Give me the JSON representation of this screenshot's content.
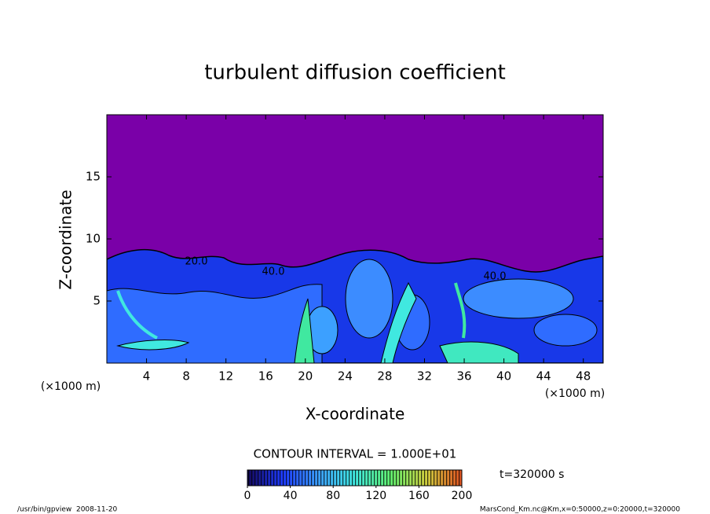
{
  "chart_data": {
    "type": "contour",
    "title": "turbulent diffusion coefficient",
    "x_label": "X-coordinate",
    "y_label": "Z-coordinate",
    "x_unit": "(×1000 m)",
    "y_unit": "(×1000 m)",
    "xlim": [
      0,
      50
    ],
    "ylim": [
      0,
      20
    ],
    "xticks": [
      4,
      8,
      12,
      16,
      20,
      24,
      28,
      32,
      36,
      40,
      44,
      48
    ],
    "yticks": [
      5,
      10,
      15
    ],
    "contour_labels": [
      "20.0",
      "40.0",
      "40.0"
    ],
    "contour_interval": "CONTOUR INTERVAL = 1.000E+01",
    "colorbar": {
      "lim": [
        0,
        200
      ],
      "ticks": [
        0,
        40,
        80,
        120,
        160,
        200
      ],
      "colors": [
        "#14085a",
        "#1e3cff",
        "#3ca0ff",
        "#40e8e0",
        "#60f070",
        "#d0d040",
        "#e05020"
      ]
    },
    "time_label": "t=320000 s"
  },
  "footer": {
    "left": "/usr/bin/gpview  2008-11-20",
    "right": "MarsCond_Km.nc@Km,x=0:50000,z=0:20000,t=320000"
  }
}
